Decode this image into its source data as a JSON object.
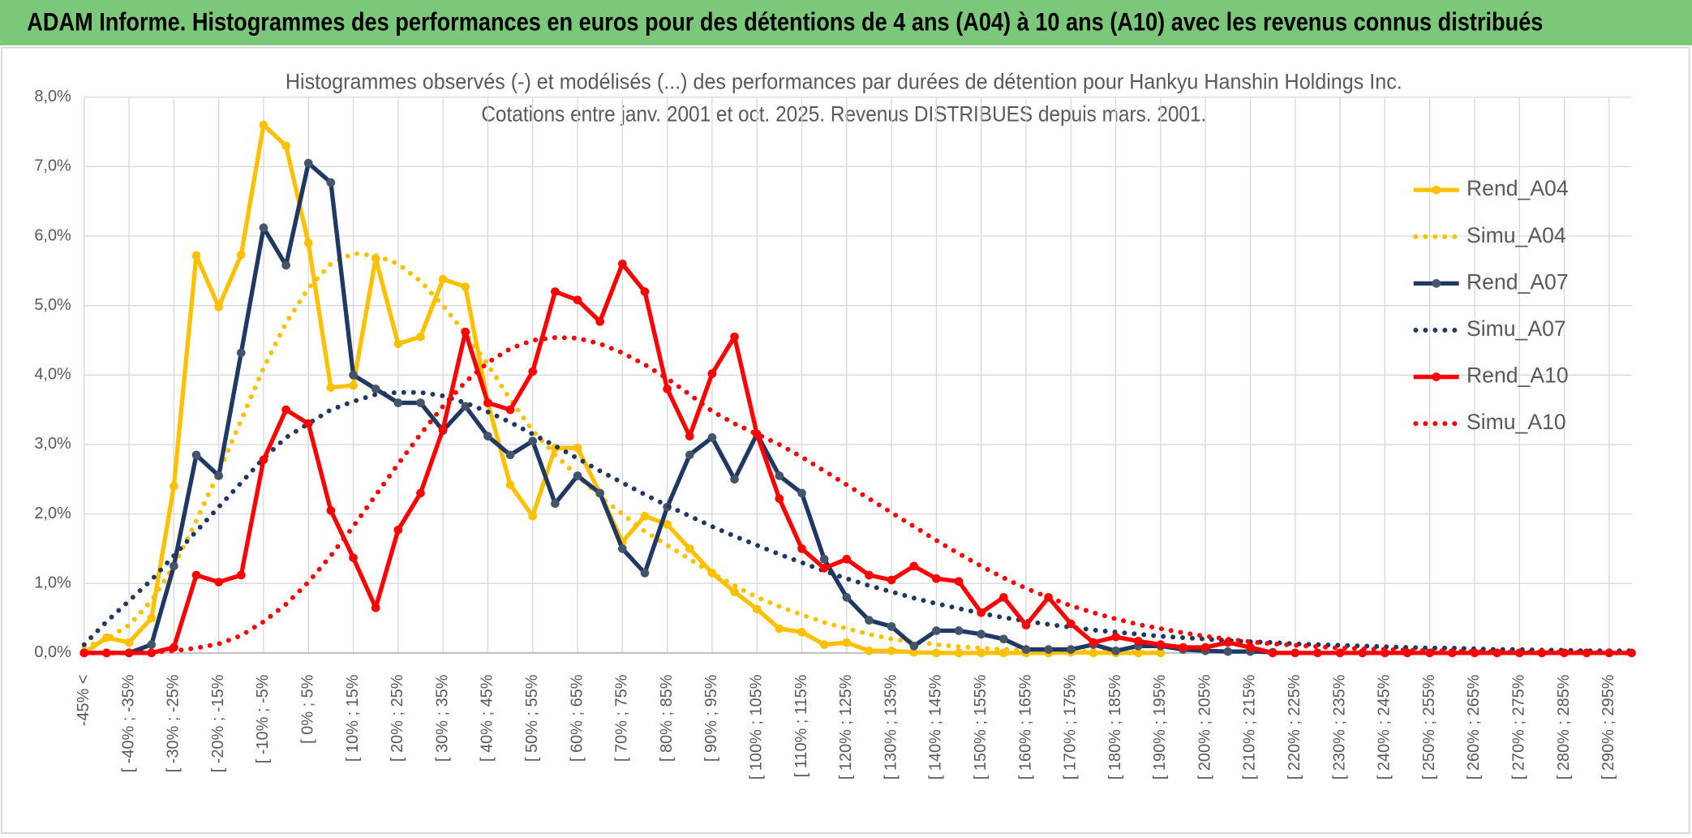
{
  "chart_data": {
    "type": "line",
    "title": "ADAM Informe. Histogrammes des performances en euros pour des détentions de 4 ans (A04) à 10 ans (A10) avec les revenus connus distribués",
    "subtitle": [
      "Histogrammes observés (-) et modélisés (...) des performances par durées de détention pour Hankyu Hanshin Holdings Inc.",
      "Cotations entre janv. 2001 et oct. 2025. Revenus DISTRIBUES depuis mars. 2001."
    ],
    "categories": [
      "-45% <",
      null,
      "[ -40% ; -35%",
      null,
      "[ -30% ; -25%",
      null,
      "[ -20% ; -15%",
      null,
      "[ -10% ; -5%",
      null,
      "[ 0% ; 5%",
      null,
      "[ 10% ; 15%",
      null,
      "[ 20% ; 25%",
      null,
      "[ 30% ; 35%",
      null,
      "[ 40% ; 45%",
      null,
      "[ 50% ; 55%",
      null,
      "[ 60% ; 65%",
      null,
      "[ 70% ; 75%",
      null,
      "[ 80% ; 85%",
      null,
      "[ 90% ; 95%",
      null,
      "[ 100% ; 105%",
      null,
      "[ 110% ; 115%",
      null,
      "[ 120% ; 125%",
      null,
      "[ 130% ; 135%",
      null,
      "[ 140% ; 145%",
      null,
      "[ 150% ; 155%",
      null,
      "[ 160% ; 165%",
      null,
      "[ 170% ; 175%",
      null,
      "[ 180% ; 185%",
      null,
      "[ 190% ; 195%",
      null,
      "[ 200% ; 205%",
      null,
      "[ 210% ; 215%",
      null,
      "[ 220% ; 225%",
      null,
      "[ 230% ; 235%",
      null,
      "[ 240% ; 245%",
      null,
      "[ 250% ; 255%",
      null,
      "[ 260% ; 265%",
      null,
      "[ 270% ; 275%",
      null,
      "[ 280% ; 285%",
      null,
      "[ 290% ; 295%",
      null
    ],
    "ylim": [
      0,
      8
    ],
    "yticks": [
      {
        "value": 0,
        "label": "0,0%"
      },
      {
        "value": 1,
        "label": "1,0%"
      },
      {
        "value": 2,
        "label": "2,0%"
      },
      {
        "value": 3,
        "label": "3,0%"
      },
      {
        "value": 4,
        "label": "4,0%"
      },
      {
        "value": 5,
        "label": "5,0%"
      },
      {
        "value": 6,
        "label": "6,0%"
      },
      {
        "value": 7,
        "label": "7,0%"
      },
      {
        "value": 8,
        "label": "8,0%"
      }
    ],
    "grid": true,
    "legend": "right",
    "series": [
      {
        "name": "Rend_A04",
        "color": "#FFC000",
        "style": "solid",
        "markers": true,
        "values": [
          0,
          0.22,
          0.15,
          0.5,
          2.4,
          5.72,
          4.98,
          5.73,
          7.6,
          7.3,
          5.9,
          3.82,
          3.85,
          5.68,
          4.45,
          4.55,
          5.38,
          5.27,
          3.6,
          2.42,
          1.97,
          2.95,
          2.95,
          2.3,
          1.6,
          1.97,
          1.85,
          1.5,
          1.15,
          0.88,
          0.63,
          0.35,
          0.3,
          0.12,
          0.15,
          0.03,
          0.03,
          0.01,
          0,
          0,
          0,
          0,
          0,
          0,
          0.01,
          0,
          0,
          0,
          0,
          null,
          null,
          null,
          null,
          null,
          null,
          null,
          null,
          null,
          null,
          null,
          null,
          null,
          null,
          null,
          null,
          null,
          null,
          null,
          null,
          null
        ]
      },
      {
        "name": "Simu_A04",
        "color": "#FFC000",
        "style": "dotted",
        "markers": false,
        "values": [
          0.08,
          0.2,
          0.4,
          0.75,
          1.25,
          1.9,
          2.6,
          3.35,
          4.1,
          4.75,
          5.25,
          5.6,
          5.75,
          5.72,
          5.6,
          5.35,
          5.0,
          4.6,
          4.15,
          3.65,
          3.2,
          2.85,
          2.55,
          2.25,
          2.0,
          1.75,
          1.55,
          1.35,
          1.15,
          0.97,
          0.8,
          0.67,
          0.55,
          0.44,
          0.35,
          0.27,
          0.2,
          0.16,
          0.12,
          0.09,
          0.07,
          0.05,
          0.04,
          0.03,
          0.02,
          0.02,
          0.01,
          0.01,
          0,
          null,
          null,
          null,
          null,
          null,
          null,
          null,
          null,
          null,
          null,
          null,
          null,
          null,
          null,
          null,
          null,
          null,
          null,
          null,
          null,
          null
        ]
      },
      {
        "name": "Rend_A07",
        "color": "#1F3864",
        "style": "solid",
        "markers": true,
        "values": [
          0,
          0,
          0,
          0.12,
          1.25,
          2.85,
          2.55,
          4.32,
          6.12,
          5.58,
          7.05,
          6.77,
          4.0,
          3.8,
          3.6,
          3.6,
          3.2,
          3.55,
          3.12,
          2.85,
          3.05,
          2.15,
          2.55,
          2.3,
          1.5,
          1.15,
          2.1,
          2.85,
          3.1,
          2.5,
          3.15,
          2.55,
          2.3,
          1.35,
          0.8,
          0.47,
          0.38,
          0.1,
          0.32,
          0.32,
          0.27,
          0.2,
          0.05,
          0.05,
          0.05,
          0.12,
          0.03,
          0.1,
          0.1,
          0.05,
          0.03,
          0.02,
          0.02,
          0.01,
          null,
          null,
          null,
          null,
          null,
          null,
          null,
          null,
          null,
          null,
          null,
          null,
          null,
          null,
          null,
          null
        ]
      },
      {
        "name": "Simu_A07",
        "color": "#1F3864",
        "style": "dotted",
        "markers": false,
        "values": [
          0.12,
          0.45,
          0.75,
          1.05,
          1.4,
          1.75,
          2.1,
          2.45,
          2.8,
          3.1,
          3.3,
          3.5,
          3.62,
          3.72,
          3.75,
          3.75,
          3.7,
          3.6,
          3.47,
          3.32,
          3.15,
          2.98,
          2.8,
          2.62,
          2.45,
          2.28,
          2.12,
          1.97,
          1.82,
          1.68,
          1.55,
          1.42,
          1.3,
          1.18,
          1.07,
          0.97,
          0.88,
          0.79,
          0.71,
          0.64,
          0.57,
          0.51,
          0.46,
          0.41,
          0.37,
          0.33,
          0.3,
          0.27,
          0.24,
          0.22,
          0.2,
          0.18,
          0.16,
          0.15,
          0.13,
          0.12,
          0.11,
          0.1,
          0.09,
          0.08,
          0.07,
          0.07,
          0.06,
          0.05,
          0.05,
          0.04,
          0.04,
          0.03,
          0.03,
          0.03
        ]
      },
      {
        "name": "Rend_A10",
        "color": "#FF0000",
        "style": "solid",
        "markers": true,
        "values": [
          0,
          0,
          0,
          0,
          0.08,
          1.12,
          1.02,
          1.12,
          2.78,
          3.5,
          3.3,
          2.05,
          1.37,
          0.65,
          1.77,
          2.3,
          3.22,
          4.62,
          3.6,
          3.5,
          4.05,
          5.2,
          5.08,
          4.77,
          5.6,
          5.2,
          3.8,
          3.12,
          4.02,
          4.55,
          3.15,
          2.22,
          1.5,
          1.22,
          1.35,
          1.12,
          1.05,
          1.25,
          1.07,
          1.03,
          0.58,
          0.8,
          0.4,
          0.8,
          0.42,
          0.15,
          0.23,
          0.17,
          0.12,
          0.08,
          0.08,
          0.15,
          0.08,
          0,
          0,
          0,
          0,
          0,
          0,
          0,
          0,
          0,
          0,
          0,
          0,
          0,
          0,
          0,
          0,
          0
        ]
      },
      {
        "name": "Simu_A10",
        "color": "#FF0000",
        "style": "dotted",
        "markers": false,
        "values": [
          0,
          0,
          0,
          0.01,
          0.03,
          0.07,
          0.13,
          0.25,
          0.45,
          0.7,
          1.02,
          1.4,
          1.82,
          2.27,
          2.72,
          3.15,
          3.55,
          3.9,
          4.18,
          4.38,
          4.5,
          4.54,
          4.53,
          4.45,
          4.32,
          4.15,
          3.95,
          3.72,
          3.48,
          3.3,
          3.15,
          3.0,
          2.82,
          2.62,
          2.42,
          2.22,
          2.02,
          1.82,
          1.62,
          1.43,
          1.25,
          1.08,
          0.93,
          0.8,
          0.68,
          0.58,
          0.49,
          0.41,
          0.35,
          0.29,
          0.24,
          0.2,
          0.16,
          0.13,
          0.11,
          0.09,
          0.07,
          0.06,
          0.05,
          0.04,
          0.03,
          0.03,
          0.02,
          0.02,
          0.01,
          0.01,
          0.01,
          0.01,
          0,
          0
        ]
      }
    ]
  }
}
